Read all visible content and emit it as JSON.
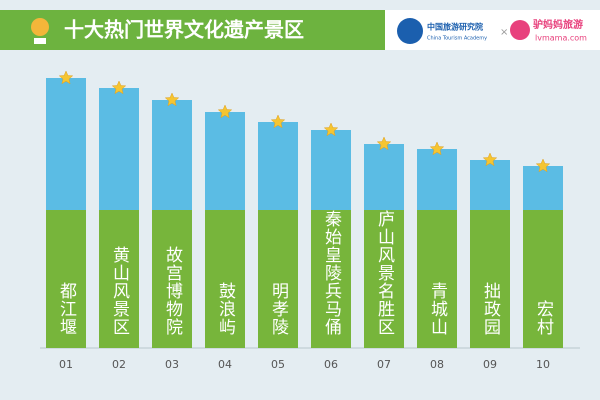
{
  "header": {
    "title": "十大热门世界文化遗产景区",
    "logo1_cn": "中国旅游研究院",
    "logo1_en": "China Tourism Academy",
    "times": "×",
    "logo2_cn": "驴妈妈旅游",
    "logo2_en": "lvmama.com"
  },
  "chart_data": {
    "type": "bar",
    "categories": [
      "01",
      "02",
      "03",
      "04",
      "05",
      "06",
      "07",
      "08",
      "09",
      "10"
    ],
    "labels": [
      "都江堰",
      "黄山风景区",
      "故宫博物院",
      "鼓浪屿",
      "明孝陵",
      "秦始皇陵兵马俑",
      "庐山风景名胜区",
      "青城山",
      "拙政园",
      "宏村"
    ],
    "values": [
      270,
      260,
      248,
      236,
      226,
      218,
      204,
      199,
      188,
      182
    ],
    "color": "#5bbce4"
  }
}
